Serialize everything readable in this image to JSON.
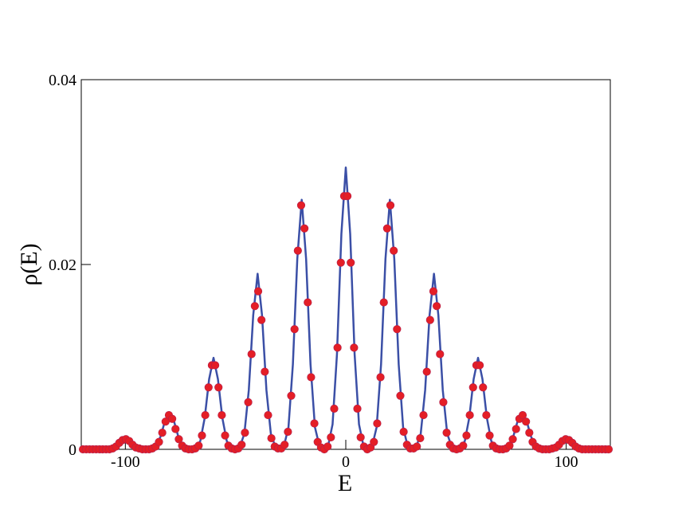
{
  "chart_data": {
    "type": "line",
    "xlabel": "E",
    "ylabel": "ρ(E)",
    "xlim": [
      -120,
      120
    ],
    "ylim": [
      0,
      0.04
    ],
    "xticks": [
      -100,
      0,
      100
    ],
    "yticks": [
      0,
      0.02,
      0.04
    ],
    "series": [
      {
        "type": "line",
        "color": "#3b4fa6",
        "x": [
          -120,
          -118,
          -116,
          -114,
          -112,
          -110,
          -108,
          -106,
          -104,
          -102,
          -100,
          -98,
          -96,
          -94,
          -92,
          -90,
          -88,
          -86,
          -84,
          -82,
          -80,
          -78,
          -76,
          -74,
          -72,
          -70,
          -68,
          -66,
          -64,
          -62,
          -60,
          -58,
          -56,
          -54,
          -52,
          -50,
          -48,
          -46,
          -44,
          -42,
          -40,
          -38,
          -36,
          -34,
          -32,
          -30,
          -28,
          -26,
          -24,
          -22,
          -20,
          -18,
          -16,
          -14,
          -12,
          -10,
          -8,
          -6,
          -4,
          -2,
          0,
          2,
          4,
          6,
          8,
          10,
          12,
          14,
          16,
          18,
          20,
          22,
          24,
          26,
          28,
          30,
          32,
          34,
          36,
          38,
          40,
          42,
          44,
          46,
          48,
          50,
          52,
          54,
          56,
          58,
          60,
          62,
          64,
          66,
          68,
          70,
          72,
          74,
          76,
          78,
          80,
          82,
          84,
          86,
          88,
          90,
          92,
          94,
          96,
          98,
          100,
          102,
          104,
          106,
          108,
          110,
          112,
          114,
          116,
          118,
          120
        ],
        "values": [
          0,
          0,
          0,
          0,
          0,
          0,
          0,
          0.0001,
          0.0004,
          0.001,
          0.0013,
          0.001,
          0.0004,
          0.0001,
          0,
          0,
          0.0001,
          0.0004,
          0.0014,
          0.0031,
          0.004,
          0.0031,
          0.0014,
          0.0004,
          0.0001,
          0,
          0.0001,
          0.0009,
          0.0034,
          0.0076,
          0.0099,
          0.0076,
          0.0034,
          0.0009,
          0.0001,
          0,
          0.0003,
          0.0017,
          0.0064,
          0.0145,
          0.019,
          0.0145,
          0.0064,
          0.0017,
          0.0003,
          0.0001,
          0.0004,
          0.0024,
          0.0092,
          0.0206,
          0.027,
          0.0206,
          0.0092,
          0.0024,
          0.0004,
          0.0001,
          0.0004,
          0.0027,
          0.0103,
          0.0233,
          0.0305,
          0.0233,
          0.0103,
          0.0027,
          0.0004,
          0.0001,
          0.0004,
          0.0024,
          0.0092,
          0.0206,
          0.027,
          0.0206,
          0.0092,
          0.0024,
          0.0004,
          0.0001,
          0.0003,
          0.0017,
          0.0064,
          0.0145,
          0.019,
          0.0145,
          0.0064,
          0.0017,
          0.0003,
          0,
          0.0001,
          0.0009,
          0.0034,
          0.0076,
          0.0099,
          0.0076,
          0.0034,
          0.0009,
          0.0001,
          0,
          0.0001,
          0.0004,
          0.0014,
          0.0031,
          0.004,
          0.0031,
          0.0014,
          0.0004,
          0.0001,
          0,
          0,
          0.0001,
          0.0004,
          0.001,
          0.0013,
          0.001,
          0.0004,
          0.0001,
          0,
          0,
          0,
          0,
          0,
          0,
          0
        ]
      },
      {
        "type": "scatter",
        "color": "#e41e26",
        "x": [
          -119.25,
          -117.75,
          -116.25,
          -114.75,
          -113.25,
          -111.75,
          -110.25,
          -108.75,
          -107.25,
          -105.75,
          -104.25,
          -102.75,
          -101.25,
          -99.75,
          -98.25,
          -96.75,
          -95.25,
          -93.75,
          -92.25,
          -90.75,
          -89.25,
          -87.75,
          -86.25,
          -84.75,
          -83.25,
          -81.75,
          -80.25,
          -78.75,
          -77.25,
          -75.75,
          -74.25,
          -72.75,
          -71.25,
          -69.75,
          -68.25,
          -66.75,
          -65.25,
          -63.75,
          -62.25,
          -60.75,
          -59.25,
          -57.75,
          -56.25,
          -54.75,
          -53.25,
          -51.75,
          -50.25,
          -48.75,
          -47.25,
          -45.75,
          -44.25,
          -42.75,
          -41.25,
          -39.75,
          -38.25,
          -36.75,
          -35.25,
          -33.75,
          -32.25,
          -30.75,
          -29.25,
          -27.75,
          -26.25,
          -24.75,
          -23.25,
          -21.75,
          -20.25,
          -18.75,
          -17.25,
          -15.75,
          -14.25,
          -12.75,
          -11.25,
          -9.75,
          -8.25,
          -6.75,
          -5.25,
          -3.75,
          -2.25,
          -0.75,
          0.75,
          2.25,
          3.75,
          5.25,
          6.75,
          8.25,
          9.75,
          11.25,
          12.75,
          14.25,
          15.75,
          17.25,
          18.75,
          20.25,
          21.75,
          23.25,
          24.75,
          26.25,
          27.75,
          29.25,
          30.75,
          32.25,
          33.75,
          35.25,
          36.75,
          38.25,
          39.75,
          41.25,
          42.75,
          44.25,
          45.75,
          47.25,
          48.75,
          50.25,
          51.75,
          53.25,
          54.75,
          56.25,
          57.75,
          59.25,
          60.75,
          62.25,
          63.75,
          65.25,
          66.75,
          68.25,
          69.75,
          71.25,
          72.75,
          74.25,
          75.75,
          77.25,
          78.75,
          80.25,
          81.75,
          83.25,
          84.75,
          86.25,
          87.75,
          89.25,
          90.75,
          92.25,
          93.75,
          95.25,
          96.75,
          98.25,
          99.75,
          101.25,
          102.75,
          104.25,
          105.75,
          107.25,
          108.75,
          110.25,
          111.75,
          113.25,
          114.75,
          116.25,
          117.75,
          119.25
        ],
        "values": [
          0,
          0,
          0,
          0,
          0,
          0,
          0,
          0,
          0,
          0.0001,
          0.0003,
          0.0007,
          0.001,
          0.0011,
          0.0009,
          0.0005,
          0.0002,
          0.0001,
          0,
          0,
          0,
          0.0001,
          0.0003,
          0.0008,
          0.0018,
          0.003,
          0.0037,
          0.0033,
          0.0022,
          0.0011,
          0.0004,
          0.0001,
          0,
          0,
          0.0001,
          0.0004,
          0.0015,
          0.0037,
          0.0067,
          0.0091,
          0.0091,
          0.0067,
          0.0037,
          0.0015,
          0.0004,
          0.0001,
          0,
          0.0001,
          0.0005,
          0.0018,
          0.0051,
          0.0103,
          0.0155,
          0.0171,
          0.014,
          0.0084,
          0.0037,
          0.0012,
          0.0003,
          0.0001,
          0.0001,
          0.0005,
          0.0019,
          0.0058,
          0.013,
          0.0215,
          0.0264,
          0.0239,
          0.0159,
          0.0078,
          0.0028,
          0.0008,
          0.0002,
          0,
          0.0003,
          0.0013,
          0.0044,
          0.011,
          0.0202,
          0.0274,
          0.0274,
          0.0202,
          0.011,
          0.0044,
          0.0013,
          0.0003,
          0,
          0.0002,
          0.0008,
          0.0028,
          0.0078,
          0.0159,
          0.0239,
          0.0264,
          0.0215,
          0.013,
          0.0058,
          0.0019,
          0.0005,
          0.0001,
          0.0001,
          0.0003,
          0.0012,
          0.0037,
          0.0084,
          0.014,
          0.0171,
          0.0155,
          0.0103,
          0.0051,
          0.0018,
          0.0005,
          0.0001,
          0,
          0.0001,
          0.0004,
          0.0015,
          0.0037,
          0.0067,
          0.0091,
          0.0091,
          0.0067,
          0.0037,
          0.0015,
          0.0004,
          0.0001,
          0,
          0,
          0.0001,
          0.0004,
          0.0011,
          0.0022,
          0.0033,
          0.0037,
          0.003,
          0.0018,
          0.0008,
          0.0003,
          0.0001,
          0,
          0,
          0,
          0.0001,
          0.0002,
          0.0005,
          0.0009,
          0.0011,
          0.001,
          0.0007,
          0.0003,
          0.0001,
          0,
          0,
          0,
          0,
          0,
          0,
          0,
          0,
          0
        ]
      }
    ]
  }
}
